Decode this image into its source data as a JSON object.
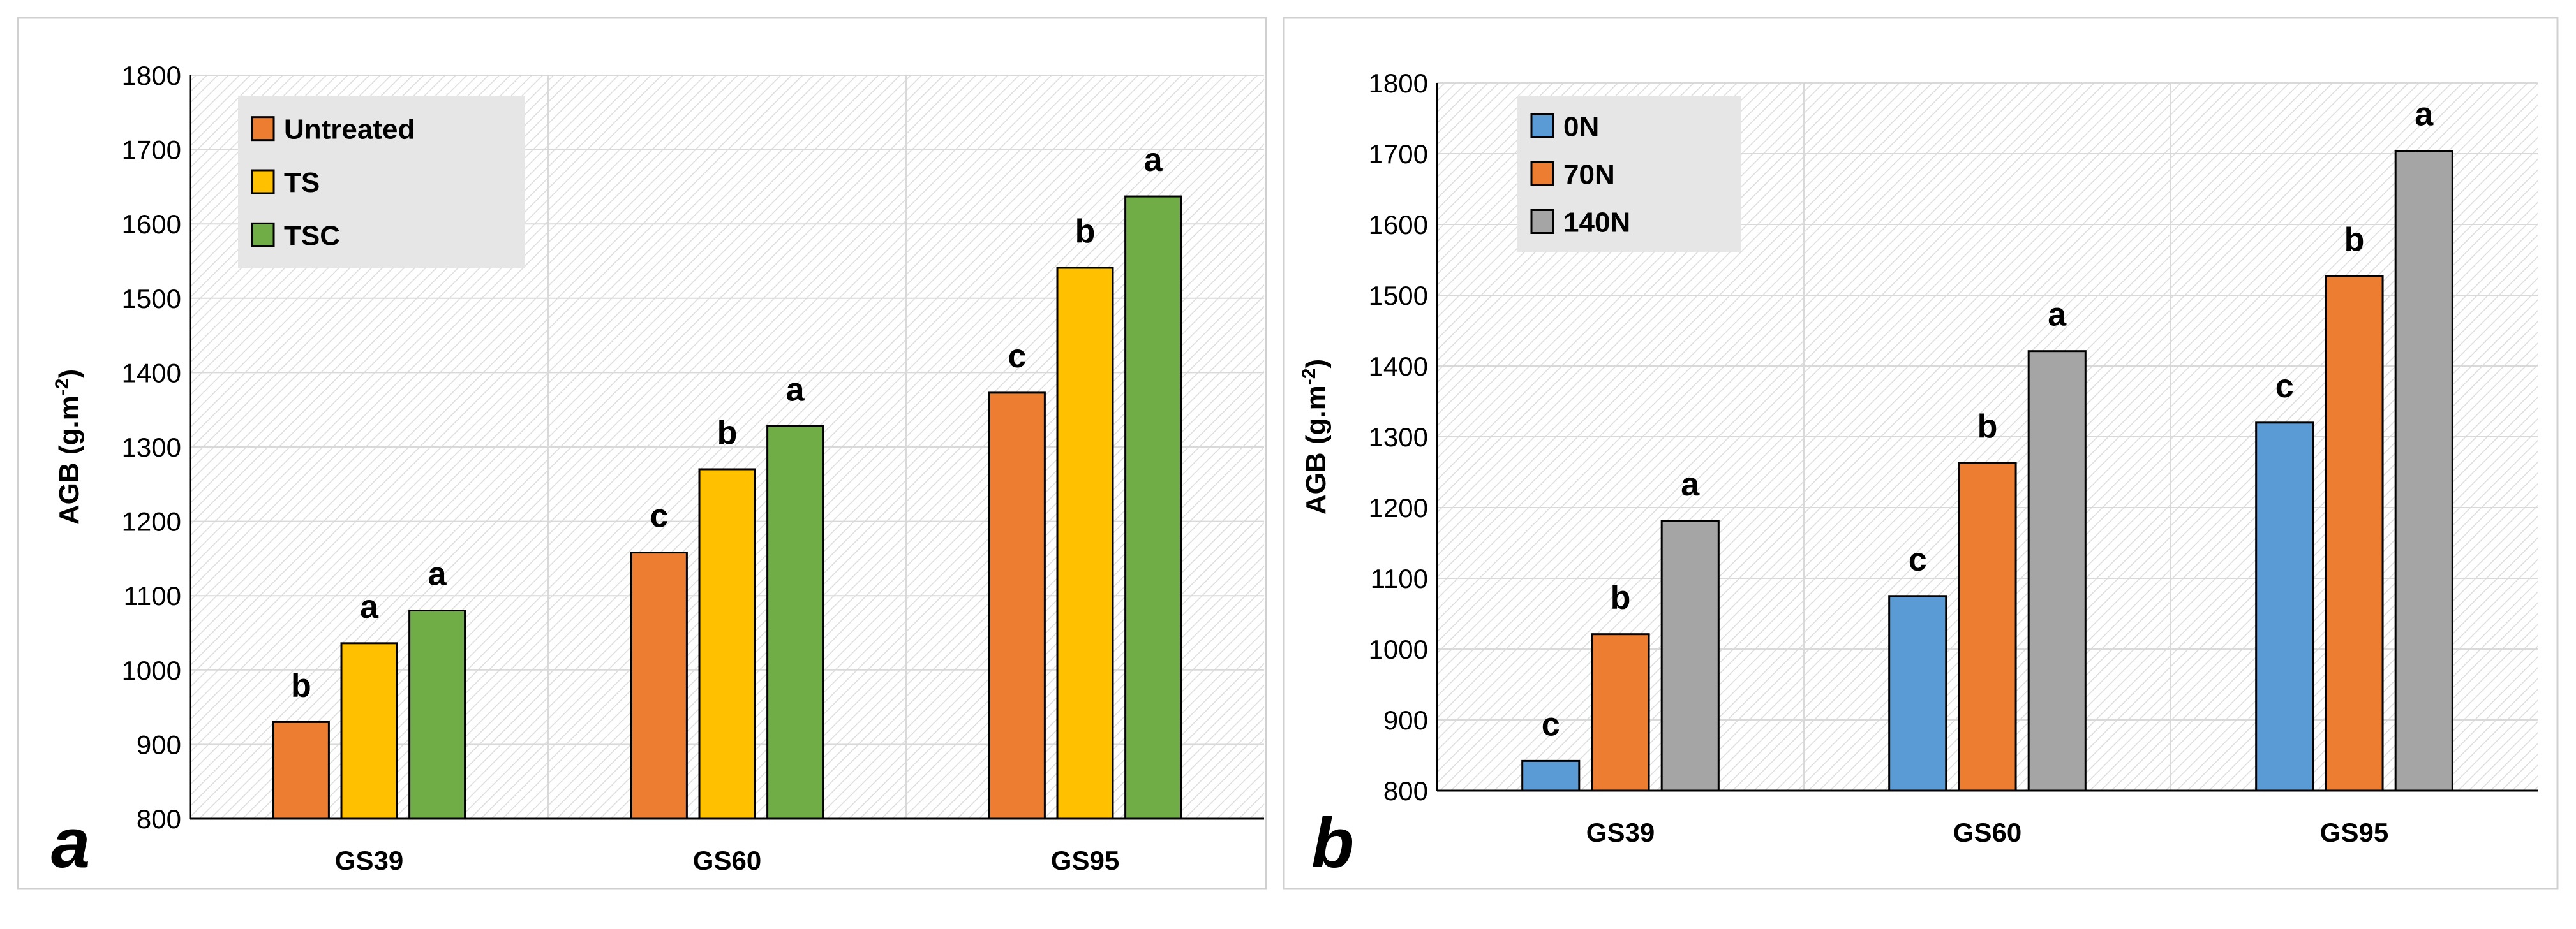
{
  "colors": {
    "orange": "#ED7D31",
    "yellow": "#FFC000",
    "green": "#70AD47",
    "blue": "#5B9BD5",
    "gray": "#A5A5A5",
    "legend_bg": "#E7E6E6",
    "grid": "#D9D9D9",
    "border": "#D0D0D0"
  },
  "chart_data": [
    {
      "type": "bar",
      "panel_label": "a",
      "title": "",
      "xlabel": "",
      "ylabel": "AGB (g.m",
      "ylabel_sup": "-2",
      "ylabel_close": ")",
      "ylim": [
        800,
        1800
      ],
      "yticks": [
        800,
        900,
        1000,
        1100,
        1200,
        1300,
        1400,
        1500,
        1600,
        1700,
        1800
      ],
      "categories": [
        "GS39",
        "GS60",
        "GS95"
      ],
      "legend_position": "top-left",
      "series": [
        {
          "name": "Untreated",
          "color": "#ED7D31",
          "values": [
            930,
            1158,
            1373
          ],
          "letters": [
            "b",
            "c",
            "c"
          ]
        },
        {
          "name": "TS",
          "color": "#FFC000",
          "values": [
            1036,
            1270,
            1541
          ],
          "letters": [
            "a",
            "b",
            "b"
          ]
        },
        {
          "name": "TSC",
          "color": "#70AD47",
          "values": [
            1080,
            1328,
            1637
          ],
          "letters": [
            "a",
            "a",
            "a"
          ]
        }
      ]
    },
    {
      "type": "bar",
      "panel_label": "b",
      "title": "",
      "xlabel": "",
      "ylabel": "AGB (g.m",
      "ylabel_sup": "-2",
      "ylabel_close": ")",
      "ylim": [
        800,
        1800
      ],
      "yticks": [
        800,
        900,
        1000,
        1100,
        1200,
        1300,
        1400,
        1500,
        1600,
        1700,
        1800
      ],
      "categories": [
        "GS39",
        "GS60",
        "GS95"
      ],
      "legend_position": "top-left",
      "series": [
        {
          "name": "0N",
          "color": "#5B9BD5",
          "values": [
            842,
            1075,
            1320
          ],
          "letters": [
            "c",
            "c",
            "c"
          ]
        },
        {
          "name": "70N",
          "color": "#ED7D31",
          "values": [
            1021,
            1263,
            1527
          ],
          "letters": [
            "b",
            "b",
            "b"
          ]
        },
        {
          "name": "140N",
          "color": "#A5A5A5",
          "values": [
            1181,
            1421,
            1704
          ],
          "letters": [
            "a",
            "a",
            "a"
          ]
        }
      ]
    }
  ]
}
